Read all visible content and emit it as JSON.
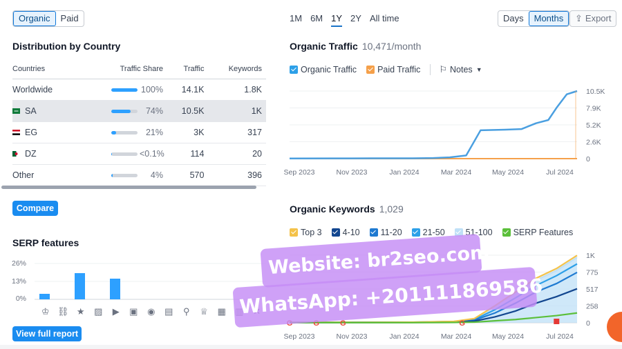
{
  "source_toggle": {
    "organic": "Organic",
    "paid": "Paid"
  },
  "periods": [
    "1M",
    "6M",
    "1Y",
    "2Y",
    "All time"
  ],
  "granularity": {
    "days": "Days",
    "months": "Months"
  },
  "export_label": "Export",
  "distribution": {
    "title": "Distribution by Country",
    "columns": [
      "Countries",
      "Traffic Share",
      "Traffic",
      "Keywords"
    ],
    "rows": [
      {
        "country": "Worldwide",
        "flag": "",
        "share": "100%",
        "share_level": 1.0,
        "traffic": "14.1K",
        "keywords": "1.8K"
      },
      {
        "country": "SA",
        "flag": "sa-flag",
        "share": "74%",
        "share_level": 0.74,
        "traffic": "10.5K",
        "keywords": "1K"
      },
      {
        "country": "EG",
        "flag": "eg-flag",
        "share": "21%",
        "share_level": 0.21,
        "traffic": "3K",
        "keywords": "317"
      },
      {
        "country": "DZ",
        "flag": "dz-flag",
        "share": "<0.1%",
        "share_level": 0.001,
        "traffic": "114",
        "keywords": "20"
      },
      {
        "country": "Other",
        "flag": "",
        "share": "4%",
        "share_level": 0.04,
        "traffic": "570",
        "keywords": "396"
      }
    ]
  },
  "compare_label": "Compare",
  "serp": {
    "title": "SERP features",
    "ylabels": [
      "26%",
      "13%",
      "0%"
    ],
    "icons": [
      "crown-icon",
      "link-icon",
      "star-icon",
      "image-icon",
      "video-icon",
      "video-carousel-icon",
      "play-icon",
      "faq-icon",
      "location-icon",
      "education-icon",
      "news-icon",
      "table-icon",
      "x-icon"
    ],
    "view_full_label": "View full report"
  },
  "organic_traffic": {
    "title": "Organic Traffic",
    "value": "10,471/month",
    "legend": {
      "organic": "Organic Traffic",
      "paid": "Paid Traffic",
      "notes": "Notes"
    }
  },
  "organic_keywords": {
    "title": "Organic Keywords",
    "value": "1,029",
    "legend": [
      "Top 3",
      "4-10",
      "11-20",
      "21-50",
      "51-100",
      "SERP Features"
    ]
  },
  "watermark": {
    "line1": "Website: br2seo.com",
    "line2": "WhatsApp: +201111869586"
  },
  "colors": {
    "accent": "#1a8cf0",
    "organic": "#4a9fe0",
    "paid": "#f5a04a",
    "help": "#f2652a"
  },
  "chart_data": [
    {
      "type": "bar",
      "title": "SERP features",
      "ylabel": "",
      "ylim": [
        0,
        26
      ],
      "ytick_labels": [
        "26%",
        "13%",
        "0%"
      ],
      "values": [
        4,
        0,
        19,
        0,
        15,
        0,
        0,
        0,
        0,
        0,
        0,
        0,
        0
      ]
    },
    {
      "type": "line",
      "title": "Organic Traffic",
      "xlabels": [
        "Sep 2023",
        "Nov 2023",
        "Jan 2024",
        "Mar 2024",
        "May 2024",
        "Jul 2024"
      ],
      "ytick_labels": [
        "10.5K",
        "7.9K",
        "5.2K",
        "2.6K",
        "0"
      ],
      "ylim": [
        0,
        10500
      ],
      "grid": true,
      "series": [
        {
          "name": "Organic Traffic",
          "color": "#4a9fe0",
          "x": [
            0,
            2,
            4,
            6,
            7,
            7.8,
            8.6,
            9.3,
            10.5,
            11.3,
            12,
            12.6,
            13,
            13.5,
            14
          ],
          "values": [
            30,
            40,
            50,
            60,
            100,
            200,
            500,
            4400,
            4500,
            4600,
            5500,
            6000,
            7900,
            10000,
            10500
          ]
        },
        {
          "name": "Paid Traffic",
          "color": "#f5a04a",
          "x": [
            0,
            14
          ],
          "values": [
            0,
            0
          ]
        }
      ]
    },
    {
      "type": "area",
      "title": "Organic Keywords",
      "xlabels": [
        "Sep 2023",
        "Nov 2023",
        "Jan 2024",
        "Mar 2024",
        "May 2024",
        "Jul 2024"
      ],
      "ytick_labels": [
        "1K",
        "775",
        "517",
        "258",
        "0"
      ],
      "ylim": [
        0,
        1033
      ],
      "grid": true,
      "series": [
        {
          "name": "51-100",
          "color": "#bfe0f7",
          "x": [
            0,
            6,
            8,
            9,
            10,
            11,
            12,
            13,
            14
          ],
          "values": [
            5,
            10,
            20,
            60,
            250,
            450,
            650,
            800,
            1000
          ]
        },
        {
          "name": "21-50",
          "color": "#2da0e8",
          "x": [
            0,
            6,
            8,
            9,
            10,
            11,
            12,
            13,
            14
          ],
          "values": [
            5,
            10,
            20,
            50,
            200,
            380,
            570,
            720,
            900
          ]
        },
        {
          "name": "11-20",
          "color": "#1f7ad1",
          "x": [
            0,
            6,
            8,
            9,
            10,
            11,
            12,
            13,
            14
          ],
          "values": [
            5,
            8,
            15,
            40,
            150,
            300,
            470,
            600,
            770
          ]
        },
        {
          "name": "4-10",
          "color": "#12468f",
          "x": [
            0,
            6,
            8,
            9,
            10,
            11,
            12,
            13,
            14
          ],
          "values": [
            3,
            5,
            10,
            25,
            90,
            180,
            300,
            400,
            520
          ]
        },
        {
          "name": "Top 3",
          "color": "#f4c24a",
          "x": [
            0,
            6,
            8,
            9,
            10,
            11,
            12,
            13,
            14
          ],
          "values": [
            5,
            10,
            22,
            65,
            260,
            470,
            680,
            830,
            1030
          ]
        },
        {
          "name": "SERP Features",
          "color": "#5bbf3a",
          "x": [
            0,
            6,
            8,
            9,
            10,
            11,
            12,
            13,
            14
          ],
          "values": [
            2,
            3,
            5,
            10,
            30,
            50,
            80,
            110,
            150
          ]
        }
      ]
    }
  ]
}
